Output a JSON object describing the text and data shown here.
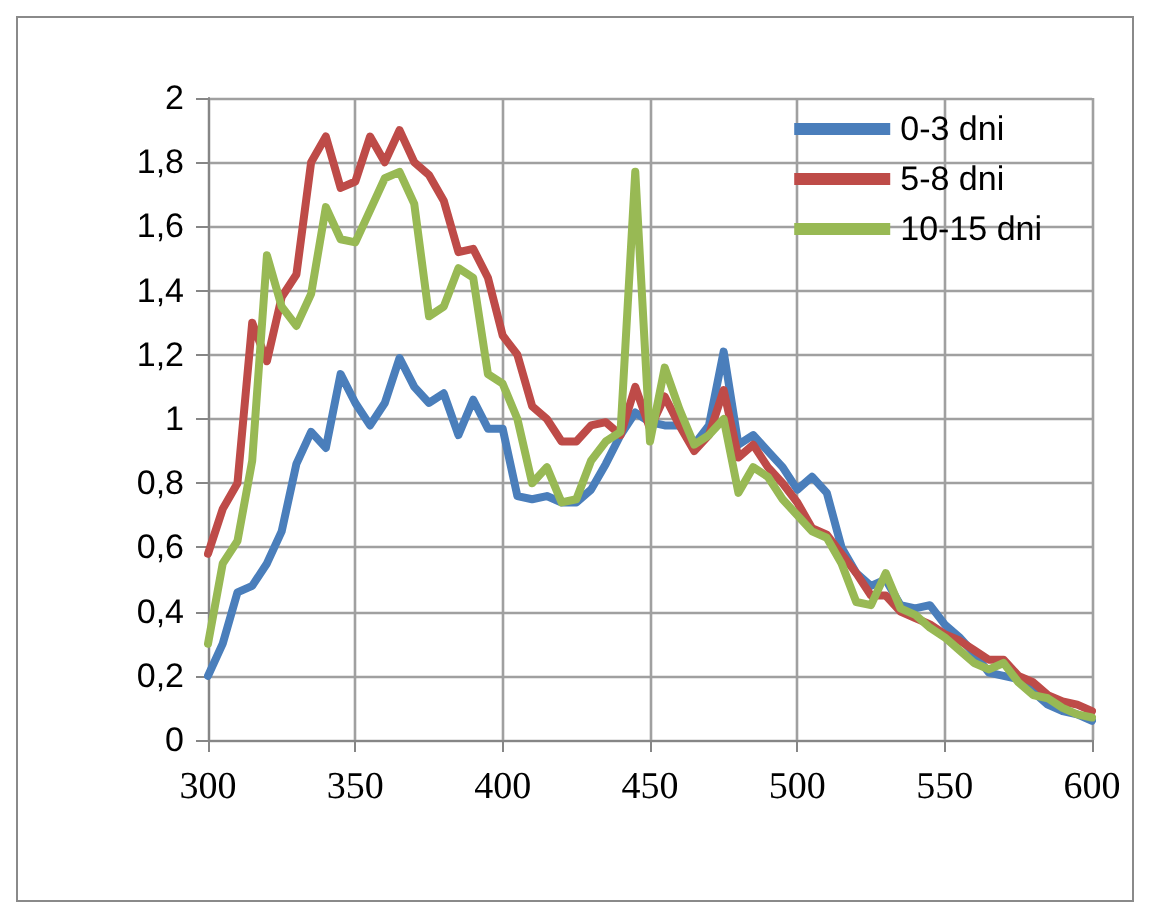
{
  "chart_data": {
    "type": "line",
    "x": [
      300,
      305,
      310,
      315,
      320,
      325,
      330,
      335,
      340,
      345,
      350,
      355,
      360,
      365,
      370,
      375,
      380,
      385,
      390,
      395,
      400,
      405,
      410,
      415,
      420,
      425,
      430,
      435,
      440,
      445,
      450,
      455,
      460,
      465,
      470,
      475,
      480,
      485,
      490,
      495,
      500,
      505,
      510,
      515,
      520,
      525,
      530,
      535,
      540,
      545,
      550,
      555,
      560,
      565,
      570,
      575,
      580,
      585,
      590,
      595,
      600
    ],
    "series": [
      {
        "name": "0-3 dni",
        "color": "#4a7ebb",
        "values": [
          0.2,
          0.3,
          0.46,
          0.48,
          0.55,
          0.65,
          0.86,
          0.96,
          0.91,
          1.14,
          1.05,
          0.98,
          1.05,
          1.19,
          1.1,
          1.05,
          1.08,
          0.95,
          1.06,
          0.97,
          0.97,
          0.76,
          0.75,
          0.76,
          0.74,
          0.74,
          0.78,
          0.86,
          0.95,
          1.02,
          0.99,
          0.98,
          0.98,
          0.92,
          0.98,
          1.21,
          0.92,
          0.95,
          0.9,
          0.85,
          0.78,
          0.82,
          0.77,
          0.6,
          0.52,
          0.48,
          0.5,
          0.42,
          0.41,
          0.42,
          0.36,
          0.32,
          0.27,
          0.21,
          0.2,
          0.19,
          0.15,
          0.11,
          0.09,
          0.08,
          0.06
        ]
      },
      {
        "name": "5-8 dni",
        "color": "#be4b48",
        "values": [
          0.58,
          0.72,
          0.8,
          1.3,
          1.18,
          1.38,
          1.45,
          1.8,
          1.88,
          1.72,
          1.74,
          1.88,
          1.8,
          1.9,
          1.8,
          1.76,
          1.68,
          1.52,
          1.53,
          1.44,
          1.26,
          1.2,
          1.04,
          1.0,
          0.93,
          0.93,
          0.98,
          0.99,
          0.95,
          1.1,
          0.97,
          1.07,
          0.98,
          0.9,
          0.95,
          1.09,
          0.88,
          0.92,
          0.85,
          0.8,
          0.74,
          0.66,
          0.64,
          0.58,
          0.52,
          0.45,
          0.45,
          0.4,
          0.38,
          0.36,
          0.33,
          0.31,
          0.28,
          0.25,
          0.25,
          0.2,
          0.18,
          0.14,
          0.12,
          0.11,
          0.09
        ]
      },
      {
        "name": "10-15 dni",
        "color": "#98b954",
        "values": [
          0.3,
          0.55,
          0.62,
          0.87,
          1.51,
          1.35,
          1.29,
          1.39,
          1.66,
          1.56,
          1.55,
          1.65,
          1.75,
          1.77,
          1.67,
          1.32,
          1.35,
          1.47,
          1.44,
          1.14,
          1.11,
          1.0,
          0.8,
          0.85,
          0.74,
          0.75,
          0.87,
          0.93,
          0.96,
          1.77,
          0.93,
          1.16,
          1.03,
          0.92,
          0.95,
          1.0,
          0.77,
          0.85,
          0.82,
          0.75,
          0.7,
          0.65,
          0.63,
          0.55,
          0.43,
          0.42,
          0.52,
          0.41,
          0.39,
          0.35,
          0.32,
          0.28,
          0.24,
          0.22,
          0.24,
          0.18,
          0.14,
          0.13,
          0.1,
          0.08,
          0.07
        ]
      }
    ],
    "xlim": [
      300,
      600
    ],
    "xticks": [
      300,
      350,
      400,
      450,
      500,
      550,
      600
    ],
    "ylim": [
      0,
      2
    ],
    "yticks": [
      0,
      {
        "value": 0.2,
        "label": "0,2"
      },
      {
        "value": 0.4,
        "label": "0,4"
      },
      {
        "value": 0.6,
        "label": "0,6"
      },
      {
        "value": 0.8,
        "label": "0,8"
      },
      1,
      {
        "value": 1.2,
        "label": "1,2"
      },
      {
        "value": 1.4,
        "label": "1,4"
      },
      {
        "value": 1.6,
        "label": "1,6"
      },
      {
        "value": 1.8,
        "label": "1,8"
      },
      2
    ],
    "grid": true,
    "legend": "top right",
    "marker": "none",
    "line_style": "solid"
  }
}
